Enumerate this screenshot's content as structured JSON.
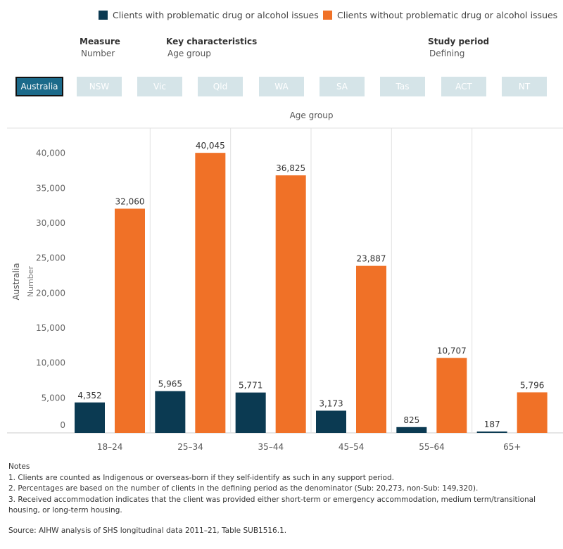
{
  "legend": {
    "items": [
      {
        "label": "Clients with problematic drug or alcohol issues",
        "color": "#0b3a52"
      },
      {
        "label": "Clients without problematic drug or alcohol issues",
        "color": "#f07127"
      }
    ]
  },
  "filters": {
    "measure": {
      "label": "Measure",
      "value": "Number"
    },
    "key_characteristics": {
      "label": "Key characteristics",
      "value": "Age group"
    },
    "study_period": {
      "label": "Study period",
      "value": "Defining"
    }
  },
  "states": [
    "Australia",
    "NSW",
    "Vic",
    "Qld",
    "WA",
    "SA",
    "Tas",
    "ACT",
    "NT"
  ],
  "active_state": "Australia",
  "chart_data": {
    "type": "bar",
    "title": "",
    "xlabel": "Age group",
    "ylabel_outer": "Australia",
    "ylabel": "Number",
    "categories": [
      "18–24",
      "25–34",
      "35–44",
      "45–54",
      "55–64",
      "65+"
    ],
    "series": [
      {
        "name": "Clients with problematic drug or alcohol issues",
        "color": "#0b3a52",
        "values": [
          4352,
          5965,
          5771,
          3173,
          825,
          187
        ],
        "labels": [
          "4,352",
          "5,965",
          "5,771",
          "3,173",
          "825",
          "187"
        ]
      },
      {
        "name": "Clients without problematic drug or alcohol issues",
        "color": "#f07127",
        "values": [
          32060,
          40045,
          36825,
          23887,
          10707,
          5796
        ],
        "labels": [
          "32,060",
          "40,045",
          "36,825",
          "23,887",
          "10,707",
          "5,796"
        ]
      }
    ],
    "ylim": [
      0,
      44000
    ],
    "yticks": [
      0,
      5000,
      10000,
      15000,
      20000,
      25000,
      30000,
      35000,
      40000
    ],
    "ytick_labels": [
      "0",
      "5,000",
      "10,000",
      "15,000",
      "20,000",
      "25,000",
      "30,000",
      "35,000",
      "40,000"
    ],
    "grid": false,
    "legend": "top"
  },
  "notes": {
    "heading": "Notes",
    "items": [
      "1.  Clients are counted as Indigenous  or overseas-born if they self-identify as such in any support period.",
      "2.  Percentages are based on the number of clients in the defining period as the denominator (Sub: 20,273, non-Sub: 149,320).",
      "3.  Received accommodation  indicates that the client was provided either short-term or emergency accommodation, medium term/transitional housing, or long-term housing."
    ]
  },
  "source": "Source: AIHW analysis of SHS longitudinal data 2011–21, Table SUB1516.1."
}
